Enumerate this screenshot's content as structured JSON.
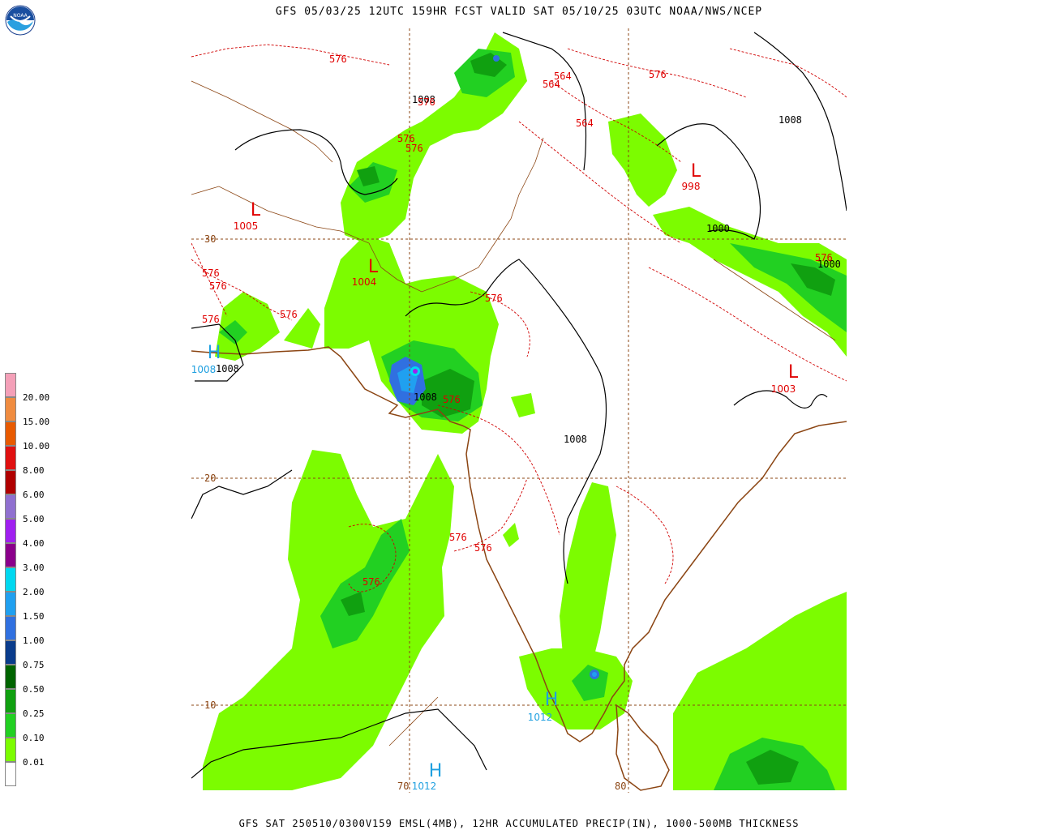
{
  "title": "GFS 05/03/25 12UTC 159HR FCST VALID SAT 05/10/25 03UTC NOAA/NWS/NCEP",
  "footer": "GFS SAT 250510/0300V159 EMSL(4MB), 12HR ACCUMULATED PRECIP(IN), 1000-500MB THICKNESS",
  "logo_text": "NOAA",
  "legend": [
    {
      "label": "20.00",
      "color": "#f4a0b8"
    },
    {
      "label": "15.00",
      "color": "#f08c40"
    },
    {
      "label": "10.00",
      "color": "#e85a00"
    },
    {
      "label": "8.00",
      "color": "#e01010"
    },
    {
      "label": "6.00",
      "color": "#b00000"
    },
    {
      "label": "5.00",
      "color": "#9070d0"
    },
    {
      "label": "4.00",
      "color": "#a020f0"
    },
    {
      "label": "3.00",
      "color": "#8b008b"
    },
    {
      "label": "2.00",
      "color": "#00d8f0"
    },
    {
      "label": "1.50",
      "color": "#20a0f0"
    },
    {
      "label": "1.00",
      "color": "#3070e0"
    },
    {
      "label": "0.75",
      "color": "#0a3c8c"
    },
    {
      "label": "0.50",
      "color": "#006400"
    },
    {
      "label": "0.25",
      "color": "#10a010"
    },
    {
      "label": "0.10",
      "color": "#22d022"
    },
    {
      "label": "0.01",
      "color": "#7cfc00"
    },
    {
      "label": "",
      "color": "#ffffff"
    }
  ],
  "grid_labels": {
    "lat30": "30",
    "lat20": "20",
    "lat10": "10",
    "lon70": "70",
    "lon80": "80"
  },
  "pressure_centers": [
    {
      "symbol": "L",
      "value": "1005",
      "color": "#e00000"
    },
    {
      "symbol": "L",
      "value": "1004",
      "color": "#e00000"
    },
    {
      "symbol": "L",
      "value": "998",
      "color": "#e00000"
    },
    {
      "symbol": "L",
      "value": "1003",
      "color": "#e00000"
    },
    {
      "symbol": "H",
      "value": "1008",
      "color": "#20a0e0"
    },
    {
      "symbol": "H",
      "value": "1012",
      "color": "#20a0e0"
    },
    {
      "symbol": "H",
      "value": "1012",
      "color": "#20a0e0"
    }
  ],
  "isobar_labels": [
    "1008",
    "1008",
    "1008",
    "1008",
    "1008",
    "1000",
    "1000"
  ],
  "thickness_labels": [
    "576",
    "576",
    "576",
    "576",
    "576",
    "576",
    "576",
    "576",
    "576",
    "576",
    "576",
    "576",
    "576",
    "576",
    "576",
    "564",
    "564",
    "564"
  ],
  "colors": {
    "isobar": "#000000",
    "thickness": "#d00000",
    "coast": "#8b4513",
    "grid": "#8b4513"
  }
}
